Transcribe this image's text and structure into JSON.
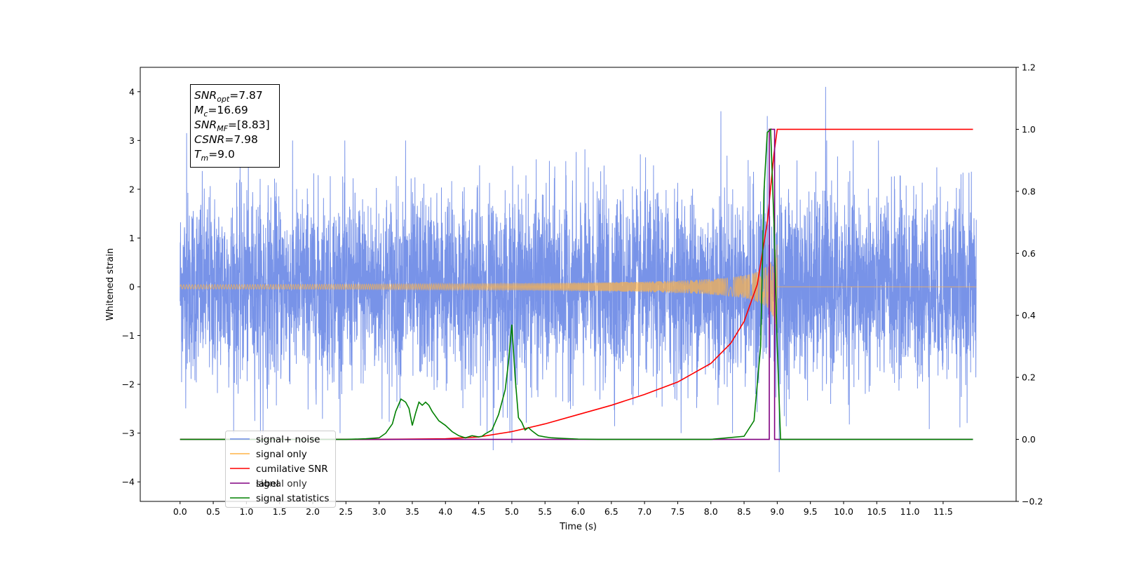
{
  "chart_data": {
    "type": "line",
    "xlabel": "Time (s)",
    "ylabel": "Whitened strain",
    "xlim": [
      -0.6,
      12.6
    ],
    "ylim": [
      -4.4,
      4.5
    ],
    "y2lim": [
      -0.2,
      1.2
    ],
    "x_ticks": [
      "0.0",
      "0.5",
      "1.0",
      "1.5",
      "2.0",
      "2.5",
      "3.0",
      "3.5",
      "4.0",
      "4.5",
      "5.0",
      "5.5",
      "6.0",
      "6.5",
      "7.0",
      "7.5",
      "8.0",
      "8.5",
      "9.0",
      "9.5",
      "10.0",
      "10.5",
      "11.0",
      "11.5"
    ],
    "y_ticks": [
      -4,
      -3,
      -2,
      -1,
      0,
      1,
      2,
      3,
      4
    ],
    "y_tick_labels": [
      "−4",
      "−3",
      "−2",
      "−1",
      "0",
      "1",
      "2",
      "3",
      "4"
    ],
    "y2_ticks": [
      "−0.2",
      "0.0",
      "0.2",
      "0.4",
      "0.6",
      "0.8",
      "1.0",
      "1.2"
    ],
    "grid": false,
    "legend_placement": "lower-left",
    "annotation": {
      "lines": [
        {
          "base": "SNR",
          "sub": "opt",
          "rest": "=7.87"
        },
        {
          "base": "M",
          "sub": "c",
          "rest": "=16.69"
        },
        {
          "base": "SNR",
          "sub": "MF",
          "rest": "=[8.83]"
        },
        {
          "base": "CSNR",
          "sub": "",
          "rest": "=7.98"
        },
        {
          "base": "T",
          "sub": "m",
          "rest": "=9.0"
        }
      ]
    },
    "legend": [
      {
        "label": "signal+ noise",
        "color": "#6d8ae6"
      },
      {
        "label": "signal only",
        "color": "#ffb347"
      },
      {
        "label": "cumilative SNR",
        "color": "#ff0000"
      },
      {
        "label": "label",
        "color": "#800080"
      },
      {
        "label": "signal statistics",
        "color": "#008000"
      }
    ],
    "legend_hidden_label": "signal only",
    "series": [
      {
        "name": "signal+ noise",
        "axis": "left",
        "color": "#6d8ae6",
        "x_range": [
          0.0,
          12.0
        ],
        "amplitude_envelope": [
          -3.8,
          4.1
        ],
        "spikes": [
          [
            0.1,
            3.15
          ],
          [
            9.73,
            4.1
          ],
          [
            8.15,
            3.6
          ],
          [
            8.85,
            3.5
          ],
          [
            9.03,
            -3.8
          ],
          [
            4.72,
            -3.35
          ],
          [
            5.0,
            -3.2
          ],
          [
            3.4,
            3.0
          ],
          [
            1.25,
            -3.0
          ]
        ]
      },
      {
        "name": "signal only",
        "axis": "left",
        "color": "#ffb347",
        "x_range": [
          0.0,
          12.0
        ],
        "chirp_end": 9.0,
        "peak_amplitude": 1.0
      },
      {
        "name": "cumilative SNR",
        "axis": "right",
        "color": "#ff0000",
        "x": [
          0.0,
          3.0,
          4.0,
          4.5,
          5.0,
          5.5,
          6.0,
          6.5,
          7.0,
          7.5,
          8.0,
          8.3,
          8.5,
          8.7,
          8.85,
          8.95,
          9.0,
          11.95
        ],
        "values": [
          0.0,
          0.0,
          0.002,
          0.008,
          0.025,
          0.05,
          0.08,
          0.11,
          0.145,
          0.185,
          0.245,
          0.31,
          0.38,
          0.5,
          0.7,
          0.92,
          1.0,
          1.0
        ]
      },
      {
        "name": "label",
        "axis": "right",
        "color": "#800080",
        "x": [
          0.0,
          8.88,
          8.88,
          8.96,
          8.96,
          11.95
        ],
        "values": [
          0.0,
          0.0,
          1.0,
          1.0,
          0.0,
          0.0
        ]
      },
      {
        "name": "signal statistics",
        "axis": "right",
        "color": "#008000",
        "x": [
          0.0,
          2.0,
          2.5,
          2.8,
          3.0,
          3.1,
          3.2,
          3.25,
          3.33,
          3.4,
          3.45,
          3.5,
          3.55,
          3.6,
          3.65,
          3.7,
          3.75,
          3.8,
          3.9,
          4.0,
          4.1,
          4.2,
          4.3,
          4.4,
          4.5,
          4.55,
          4.6,
          4.7,
          4.8,
          4.9,
          4.95,
          5.0,
          5.05,
          5.1,
          5.15,
          5.2,
          5.25,
          5.3,
          5.35,
          5.4,
          5.5,
          5.6,
          5.8,
          6.0,
          6.3,
          6.5,
          7.0,
          7.5,
          8.0,
          8.5,
          8.65,
          8.75,
          8.8,
          8.85,
          8.9,
          8.95,
          9.0,
          9.05,
          11.95
        ],
        "values": [
          0.0,
          0.0,
          0.0,
          0.002,
          0.005,
          0.02,
          0.05,
          0.09,
          0.13,
          0.12,
          0.1,
          0.045,
          0.085,
          0.12,
          0.11,
          0.12,
          0.11,
          0.09,
          0.06,
          0.045,
          0.025,
          0.012,
          0.005,
          0.012,
          0.008,
          0.01,
          0.018,
          0.03,
          0.08,
          0.16,
          0.25,
          0.37,
          0.2,
          0.07,
          0.055,
          0.03,
          0.038,
          0.028,
          0.02,
          0.012,
          0.008,
          0.005,
          0.003,
          0.001,
          0.0,
          0.0,
          0.0,
          0.0,
          0.0,
          0.01,
          0.06,
          0.3,
          0.8,
          0.99,
          1.0,
          0.7,
          0.3,
          0.0,
          0.0
        ]
      }
    ]
  }
}
